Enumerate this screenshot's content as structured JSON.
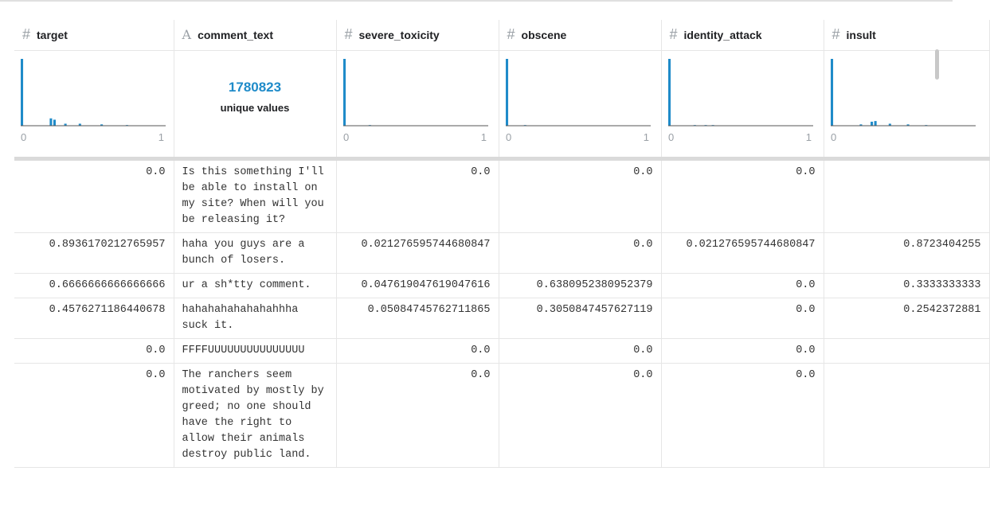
{
  "columns": [
    {
      "icon": "#",
      "name": "target",
      "axis_min": "0",
      "axis_max": "1",
      "histogram": [
        100,
        0,
        0,
        0,
        0,
        0,
        0,
        0,
        11,
        9,
        0,
        0,
        3,
        0,
        0,
        0,
        3,
        0,
        0,
        0,
        0,
        0,
        2,
        0,
        0,
        0,
        0,
        0,
        0,
        1,
        0,
        0,
        0,
        0,
        0,
        0,
        0,
        0,
        0,
        0
      ]
    },
    {
      "icon": "A",
      "name": "comment_text",
      "unique_count": "1780823",
      "unique_label": "unique values"
    },
    {
      "icon": "#",
      "name": "severe_toxicity",
      "axis_min": "0",
      "axis_max": "1",
      "histogram": [
        100,
        0,
        0,
        0,
        0,
        0,
        0,
        1,
        0,
        0,
        0,
        0,
        0,
        0,
        0,
        0,
        0,
        0,
        0,
        0,
        0,
        0,
        0,
        0,
        0,
        0,
        0,
        0,
        0,
        0,
        0,
        0,
        0,
        0,
        0,
        0,
        0,
        0,
        0,
        0
      ]
    },
    {
      "icon": "#",
      "name": "obscene",
      "axis_min": "0",
      "axis_max": "1",
      "histogram": [
        100,
        0,
        0,
        0,
        0,
        1,
        0,
        0,
        0,
        0,
        0,
        0,
        0,
        0,
        0,
        0,
        0,
        0,
        0,
        0,
        0,
        0,
        0,
        0,
        0,
        0,
        0,
        0,
        0,
        0,
        0,
        0,
        0,
        0,
        0,
        0,
        0,
        0,
        0,
        0
      ]
    },
    {
      "icon": "#",
      "name": "identity_attack",
      "axis_min": "0",
      "axis_max": "1",
      "histogram": [
        100,
        0,
        0,
        0,
        0,
        0,
        0,
        1,
        0,
        0,
        1,
        0,
        1,
        0,
        0,
        0,
        0,
        0,
        0,
        0,
        0,
        0,
        0,
        0,
        0,
        0,
        0,
        0,
        0,
        0,
        0,
        0,
        0,
        0,
        0,
        0,
        0,
        0,
        0,
        0
      ]
    },
    {
      "icon": "#",
      "name": "insult",
      "axis_min": "0",
      "histogram": [
        100,
        0,
        0,
        0,
        0,
        0,
        0,
        0,
        2,
        0,
        0,
        6,
        7,
        0,
        0,
        0,
        3,
        0,
        0,
        0,
        0,
        2,
        0,
        0,
        0,
        0,
        1,
        0,
        0,
        0,
        0,
        0,
        0,
        0,
        0,
        0,
        0,
        0,
        0,
        0
      ]
    }
  ],
  "rows": [
    [
      "0.0",
      "Is this something I'll be able to install on my site? When will you be releasing it?",
      "0.0",
      "0.0",
      "0.0",
      null
    ],
    [
      "0.8936170212765957",
      "haha you guys are a bunch of losers.",
      "0.021276595744680847",
      "0.0",
      "0.021276595744680847",
      "0.8723404255"
    ],
    [
      "0.6666666666666666",
      "ur a sh*tty comment.",
      "0.047619047619047616",
      "0.6380952380952379",
      "0.0",
      "0.3333333333"
    ],
    [
      "0.4576271186440678",
      "hahahahahahahahhha suck it.",
      "0.05084745762711865",
      "0.3050847457627119",
      "0.0",
      "0.2542372881"
    ],
    [
      "0.0",
      "FFFFUUUUUUUUUUUUUUU",
      "0.0",
      "0.0",
      "0.0",
      null
    ],
    [
      "0.0",
      "The ranchers seem motivated by mostly by greed; no one should have the right to allow their animals destroy public land.",
      "0.0",
      "0.0",
      "0.0",
      null
    ]
  ]
}
